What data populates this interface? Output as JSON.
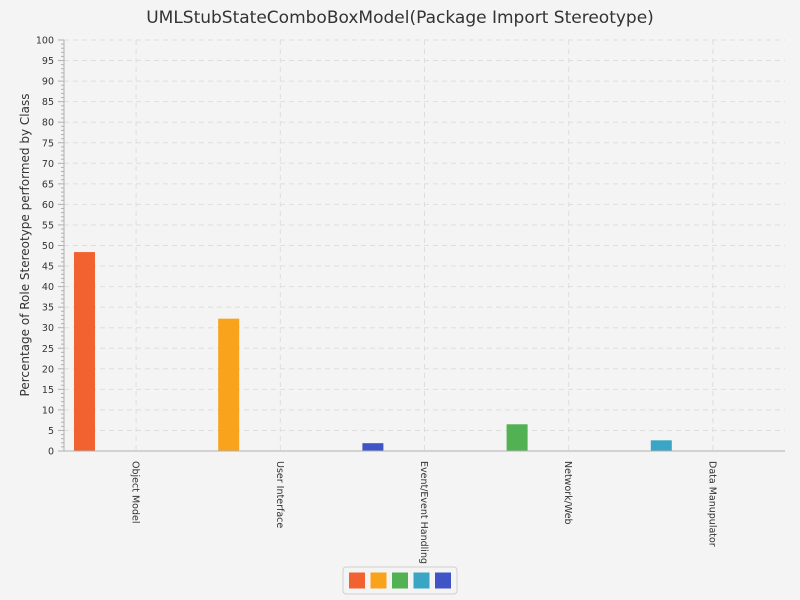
{
  "chart_data": {
    "type": "bar",
    "title": "UMLStubStateComboBoxModel(Package Import Stereotype)",
    "xlabel": "",
    "ylabel": "Percentage of Role Stereotype performed by Class",
    "ylim": [
      0,
      100
    ],
    "y_major_step": 5,
    "grid": true,
    "legend_position": "bottom",
    "categories": [
      "Object Model",
      "User Interface",
      "Event/Event Handling",
      "Network/Web",
      "Data Manupulator"
    ],
    "series": [
      {
        "color": "#f26130",
        "values": [
          48.4,
          0,
          0,
          0,
          0
        ]
      },
      {
        "color": "#f9a31c",
        "values": [
          0,
          32.2,
          0,
          0,
          0
        ]
      },
      {
        "color": "#52b152",
        "values": [
          0,
          0,
          0,
          6.5,
          0
        ]
      },
      {
        "color": "#3aa5c4",
        "values": [
          0,
          0,
          0,
          0,
          2.6
        ]
      },
      {
        "color": "#3f55c6",
        "values": [
          0,
          0,
          1.9,
          0,
          0
        ]
      }
    ]
  }
}
